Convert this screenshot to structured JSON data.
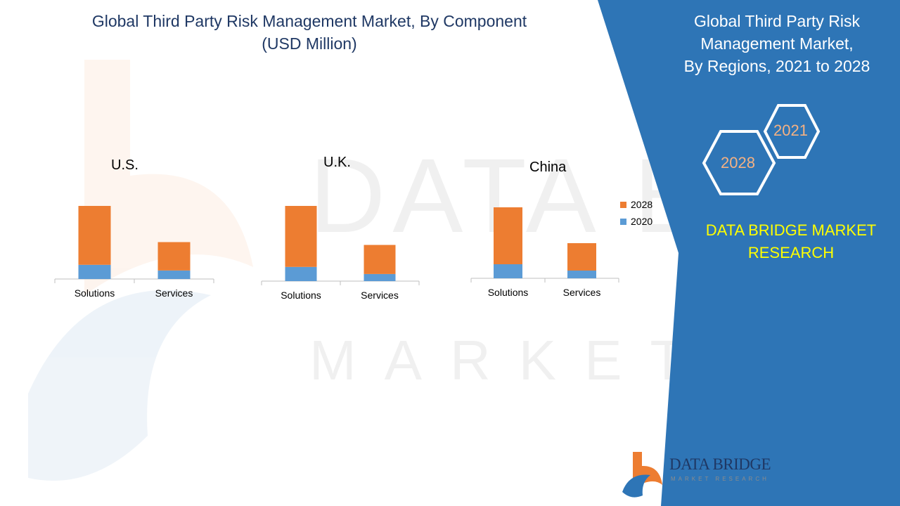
{
  "header": {
    "title_line1": "Global Third Party Risk Management Market, By Component",
    "title_line2": "(USD Million)"
  },
  "panel": {
    "title_line1": "Global Third Party Risk",
    "title_line2": "Management Market,",
    "title_line3": "By Regions, 2021 to 2028",
    "hex_front_label": "2028",
    "hex_back_label": "2021",
    "brand_line1": "DATA BRIDGE MARKET",
    "brand_line2": "RESEARCH",
    "colors": {
      "panel_blue": "#2e75b6",
      "brand_yellow": "#ffff00",
      "hex_text": "#f4b183"
    }
  },
  "logo": {
    "name": "DATA BRIDGE",
    "tagline": "MARKET RESEARCH"
  },
  "watermark": {
    "line1": "DATA BRIDGE",
    "line2": "MARKET RESEARCH"
  },
  "legend": {
    "items": [
      {
        "label": "2028",
        "color": "#ed7d31"
      },
      {
        "label": "2020",
        "color": "#5b9bd5"
      }
    ]
  },
  "chart_data": [
    {
      "type": "bar",
      "stacked": true,
      "title": "U.S.",
      "categories": [
        "Solutions",
        "Services"
      ],
      "series": [
        {
          "name": "2020",
          "color": "#5b9bd5",
          "values": [
            20,
            12
          ]
        },
        {
          "name": "2028",
          "color": "#ed7d31",
          "values": [
            83,
            40
          ]
        }
      ],
      "ylim": [
        0,
        103
      ],
      "grid": false
    },
    {
      "type": "bar",
      "stacked": true,
      "title": "U.K.",
      "categories": [
        "Solutions",
        "Services"
      ],
      "series": [
        {
          "name": "2020",
          "color": "#5b9bd5",
          "values": [
            20,
            10
          ]
        },
        {
          "name": "2028",
          "color": "#ed7d31",
          "values": [
            86,
            41
          ]
        }
      ],
      "ylim": [
        0,
        106
      ],
      "grid": false
    },
    {
      "type": "bar",
      "stacked": true,
      "title": "China",
      "categories": [
        "Solutions",
        "Services"
      ],
      "series": [
        {
          "name": "2020",
          "color": "#5b9bd5",
          "values": [
            20,
            11
          ]
        },
        {
          "name": "2028",
          "color": "#ed7d31",
          "values": [
            81,
            39
          ]
        }
      ],
      "ylim": [
        0,
        101
      ],
      "grid": false
    }
  ]
}
